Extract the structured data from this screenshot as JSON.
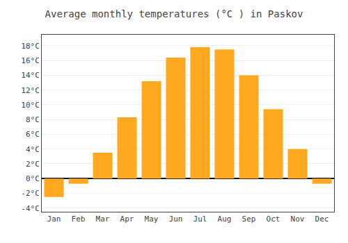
{
  "chart_data": {
    "type": "bar",
    "title": "Average monthly temperatures (°C ) in Paskov",
    "categories": [
      "Jan",
      "Feb",
      "Mar",
      "Apr",
      "May",
      "Jun",
      "Jul",
      "Aug",
      "Sep",
      "Oct",
      "Nov",
      "Dec"
    ],
    "values": [
      -2.5,
      -0.7,
      3.5,
      8.3,
      13.2,
      16.4,
      17.8,
      17.5,
      14.0,
      9.4,
      4.0,
      -0.7
    ],
    "color": "#FFA820",
    "ylim": [
      -4.5,
      19.5
    ],
    "yticks": [
      {
        "value": -4,
        "label": "-4°C"
      },
      {
        "value": -2,
        "label": "-2°C"
      },
      {
        "value": 0,
        "label": "0°C"
      },
      {
        "value": 2,
        "label": "2°C"
      },
      {
        "value": 4,
        "label": "4°C"
      },
      {
        "value": 6,
        "label": "6°C"
      },
      {
        "value": 8,
        "label": "8°C"
      },
      {
        "value": 10,
        "label": "10°C"
      },
      {
        "value": 12,
        "label": "12°C"
      },
      {
        "value": 14,
        "label": "14°C"
      },
      {
        "value": 16,
        "label": "16°C"
      },
      {
        "value": 18,
        "label": "18°C"
      }
    ],
    "grid": true
  }
}
